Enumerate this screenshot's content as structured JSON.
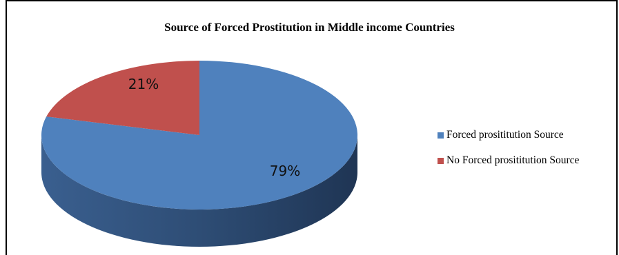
{
  "chart_data": {
    "type": "pie",
    "title": "Source of Forced Prostitution in Middle income Countries",
    "categories": [
      "Forced prosititution Source",
      "No Forced prosititution Source"
    ],
    "values": [
      79,
      21
    ],
    "data_labels": [
      "79%",
      "21%"
    ],
    "colors": [
      "#4f81bd",
      "#c0504d"
    ],
    "legend_position": "right"
  }
}
